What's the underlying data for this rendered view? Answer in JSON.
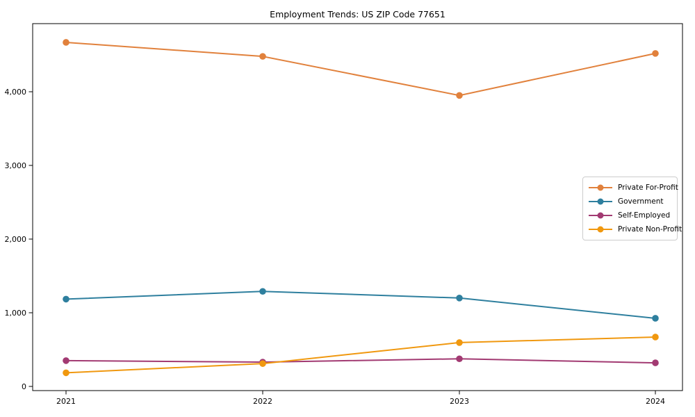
{
  "figure": {
    "title": "Employment Trends: US ZIP Code 77651"
  },
  "chart_data": {
    "type": "line",
    "title": "Employment Trends: US ZIP Code 77651",
    "xlabel": "",
    "ylabel": "",
    "categories": [
      "2021",
      "2022",
      "2023",
      "2024"
    ],
    "series": [
      {
        "name": "Private For-Profit",
        "color": "#e1813c",
        "values": [
          4670,
          4480,
          3950,
          4520
        ]
      },
      {
        "name": "Government",
        "color": "#2e7f9e",
        "values": [
          1185,
          1290,
          1200,
          925
        ]
      },
      {
        "name": "Self-Employed",
        "color": "#a23a72",
        "values": [
          350,
          330,
          375,
          320
        ]
      },
      {
        "name": "Private Non-Profit",
        "color": "#f0980f",
        "values": [
          185,
          310,
          595,
          670
        ]
      }
    ],
    "yticks": [
      0,
      1000,
      2000,
      3000,
      4000
    ],
    "ytick_labels": [
      "0",
      "1,000",
      "2,000",
      "3,000",
      "4,000"
    ],
    "ylim": [
      -60,
      4925
    ],
    "grid": false,
    "legend_position": "inside-center-right",
    "axis_color": "#000000",
    "background": "#ffffff",
    "marker": "circle",
    "line_width": 2
  }
}
